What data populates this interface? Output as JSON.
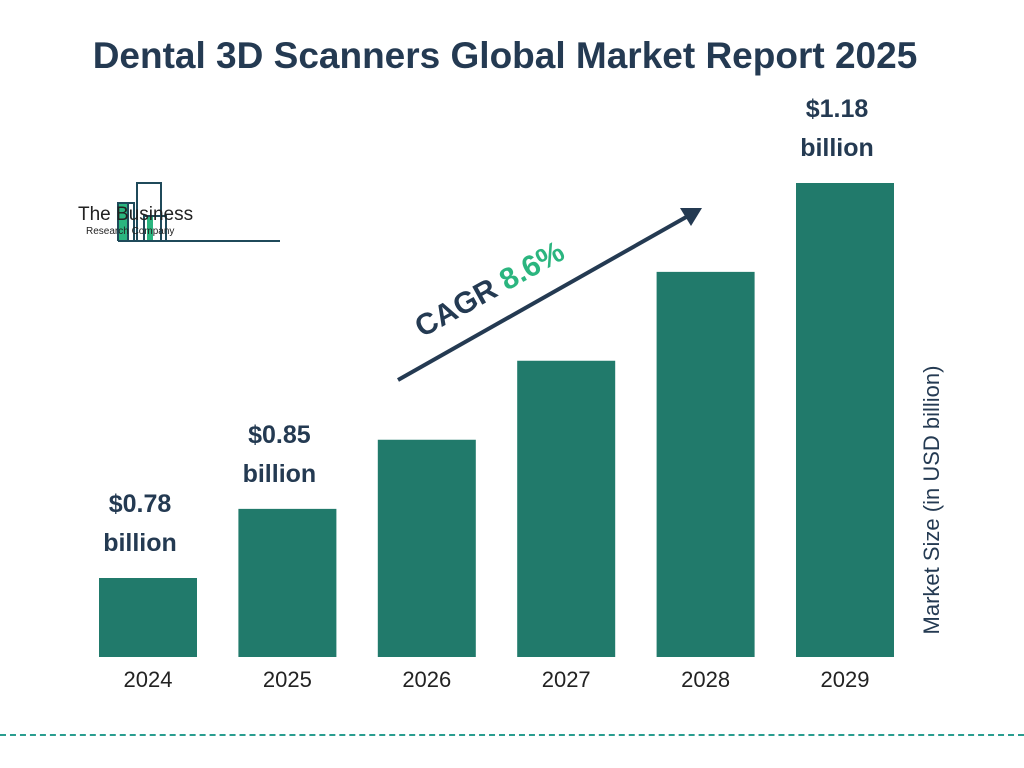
{
  "title": "Dental 3D Scanners Global Market Report 2025",
  "logo": {
    "line1": "The Business",
    "line2": "Research Company"
  },
  "colors": {
    "bar": "#217a6b",
    "text": "#243a52",
    "cagr": "#2bb57f",
    "divider": "#2a9d8f"
  },
  "chart_data": {
    "type": "bar",
    "title": "Dental 3D Scanners Global Market Report 2025",
    "categories": [
      "2024",
      "2025",
      "2026",
      "2027",
      "2028",
      "2029"
    ],
    "values": [
      0.78,
      0.85,
      0.92,
      1.0,
      1.09,
      1.18
    ],
    "data_labels": [
      {
        "category": "2024",
        "line1": "$0.78",
        "line2": "billion"
      },
      {
        "category": "2025",
        "line1": "$0.85",
        "line2": "billion"
      },
      {
        "category": "2029",
        "line1": "$1.18",
        "line2": "billion"
      }
    ],
    "ylabel": "Market Size (in USD billion)",
    "xlabel": "",
    "annotation": {
      "label": "CAGR",
      "value": "8.6%"
    },
    "grid": false
  }
}
